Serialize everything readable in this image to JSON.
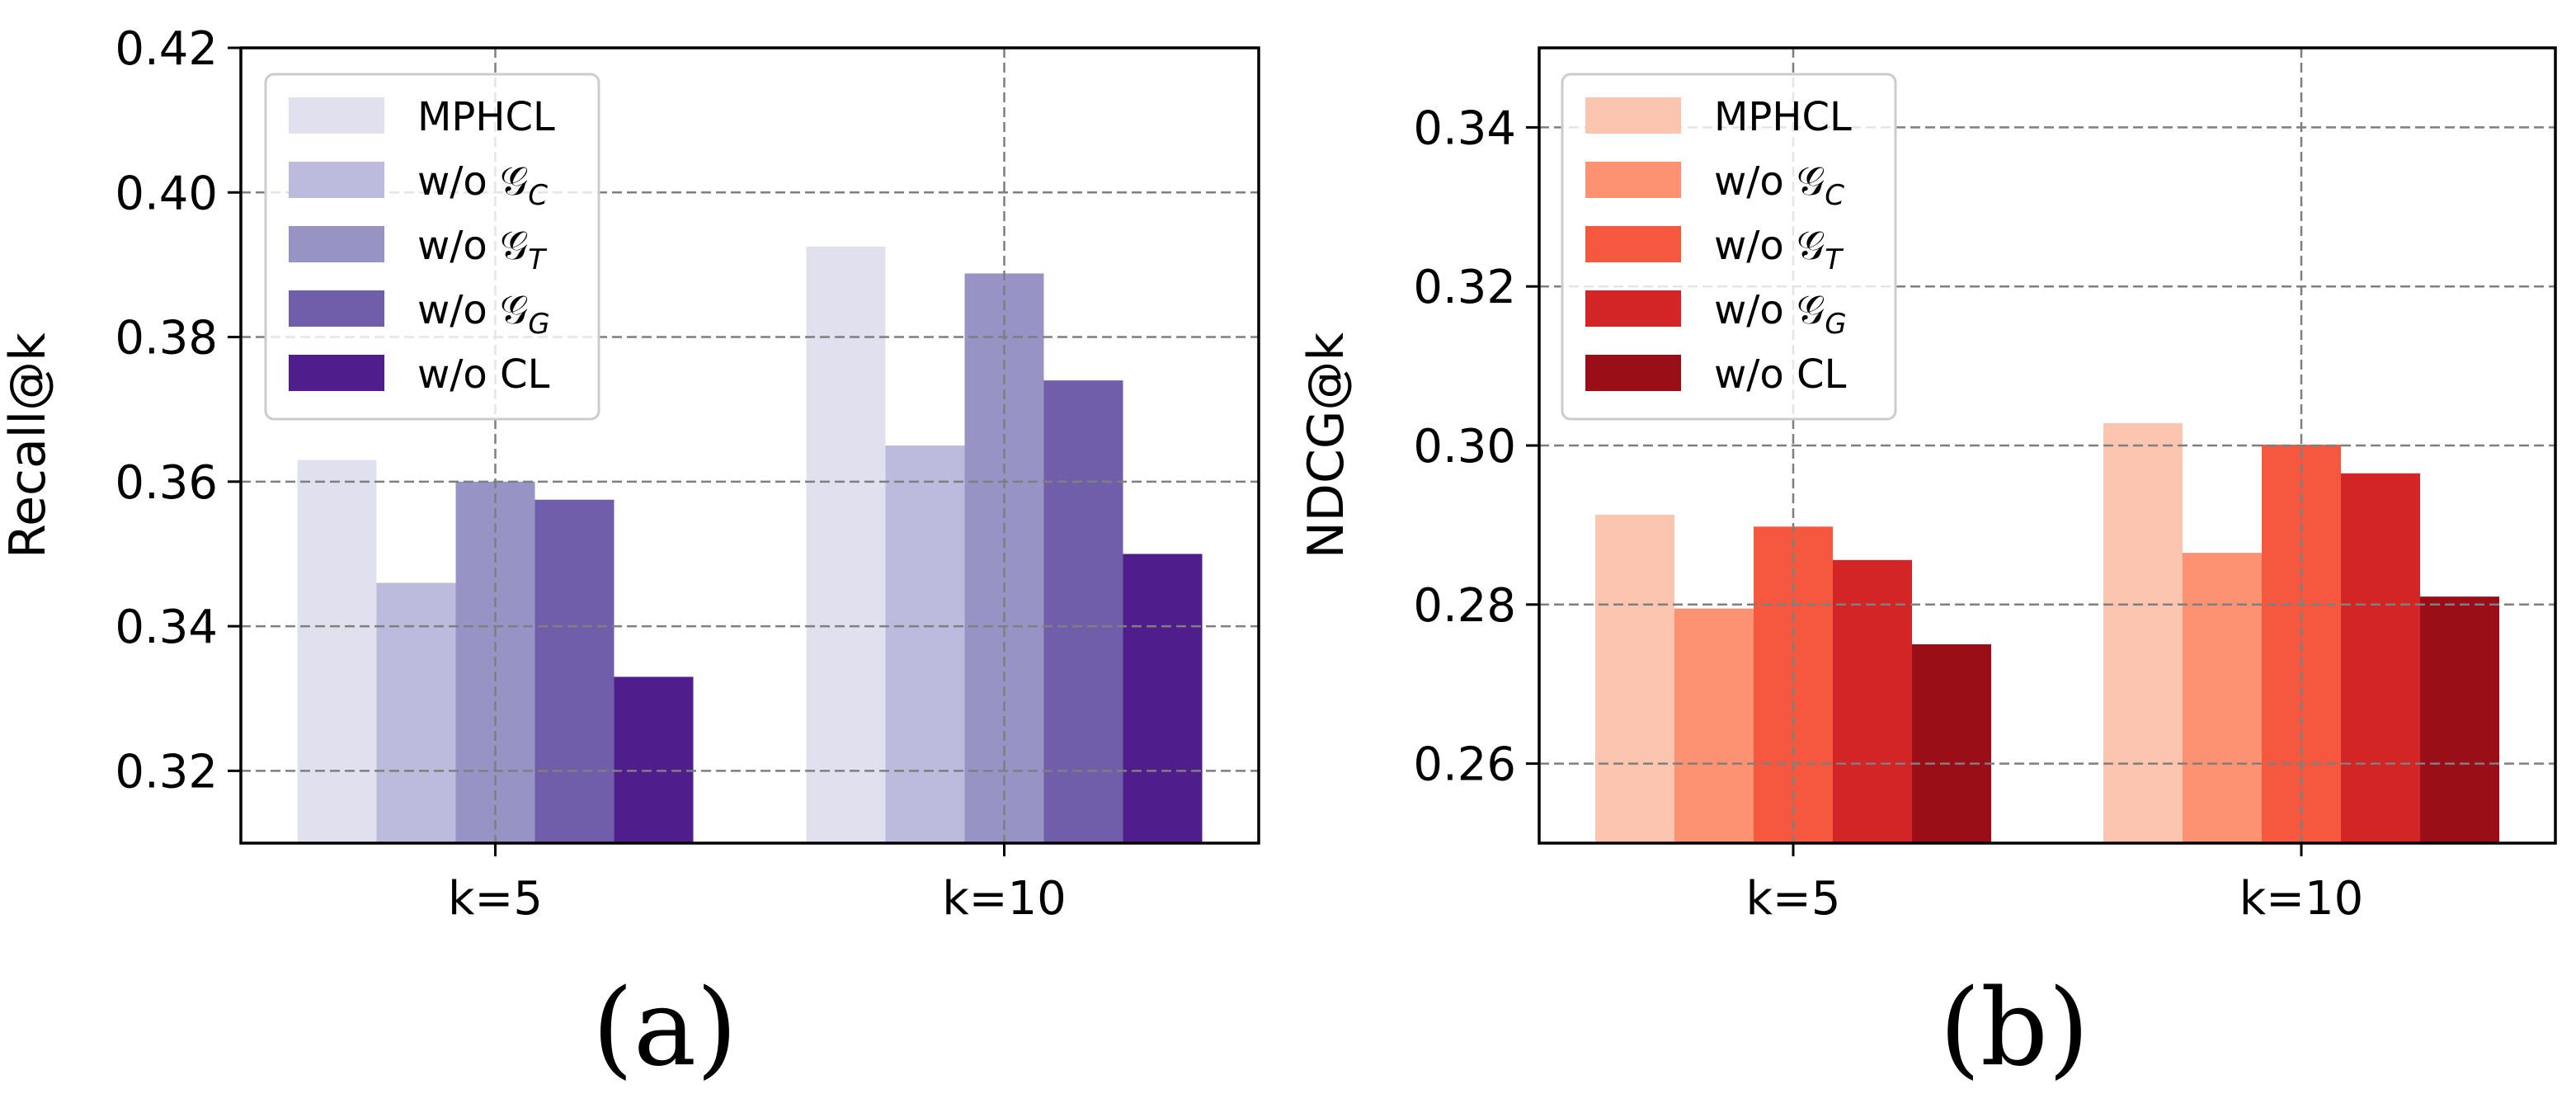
{
  "chart_data": [
    {
      "type": "bar",
      "caption": "(a)",
      "ylabel": "Recall@k",
      "categories": [
        "k=5",
        "k=10"
      ],
      "ylim": [
        0.31,
        0.42
      ],
      "yticks": [
        0.32,
        0.34,
        0.36,
        0.38,
        0.4,
        0.42
      ],
      "ytick_labels": [
        "0.32",
        "0.34",
        "0.36",
        "0.38",
        "0.40",
        "0.42"
      ],
      "grid": true,
      "legend_position": "top-left",
      "series": [
        {
          "name": "MPHCL",
          "legend_main": "MPHCL",
          "legend_sub": "",
          "color": "#e1e0ef",
          "values": [
            0.363,
            0.3925
          ]
        },
        {
          "name": "w/o G_C",
          "legend_main": "w/o 𝒢",
          "legend_sub": "C",
          "color": "#bcbbdd",
          "values": [
            0.346,
            0.365
          ]
        },
        {
          "name": "w/o G_T",
          "legend_main": "w/o 𝒢",
          "legend_sub": "T",
          "color": "#9794c5",
          "values": [
            0.36,
            0.3888
          ]
        },
        {
          "name": "w/o G_G",
          "legend_main": "w/o 𝒢",
          "legend_sub": "G",
          "color": "#705eaa",
          "values": [
            0.3575,
            0.374
          ]
        },
        {
          "name": "w/o CL",
          "legend_main": "w/o CL",
          "legend_sub": "",
          "color": "#4f1e8c",
          "values": [
            0.333,
            0.35
          ]
        }
      ]
    },
    {
      "type": "bar",
      "caption": "(b)",
      "ylabel": "NDCG@k",
      "categories": [
        "k=5",
        "k=10"
      ],
      "ylim": [
        0.25,
        0.35
      ],
      "yticks": [
        0.26,
        0.28,
        0.3,
        0.32,
        0.34
      ],
      "ytick_labels": [
        "0.26",
        "0.28",
        "0.30",
        "0.32",
        "0.34"
      ],
      "grid": true,
      "legend_position": "top-left",
      "series": [
        {
          "name": "MPHCL",
          "legend_main": "MPHCL",
          "legend_sub": "",
          "color": "#fcc5b0",
          "values": [
            0.2913,
            0.3028
          ]
        },
        {
          "name": "w/o G_C",
          "legend_main": "w/o 𝒢",
          "legend_sub": "C",
          "color": "#fc9272",
          "values": [
            0.2795,
            0.2865
          ]
        },
        {
          "name": "w/o G_T",
          "legend_main": "w/o 𝒢",
          "legend_sub": "T",
          "color": "#f5583e",
          "values": [
            0.2898,
            0.3001
          ]
        },
        {
          "name": "w/o G_G",
          "legend_main": "w/o 𝒢",
          "legend_sub": "G",
          "color": "#d32525",
          "values": [
            0.2856,
            0.2965
          ]
        },
        {
          "name": "w/o CL",
          "legend_main": "w/o CL",
          "legend_sub": "",
          "color": "#990e17",
          "values": [
            0.275,
            0.281
          ]
        }
      ]
    }
  ]
}
